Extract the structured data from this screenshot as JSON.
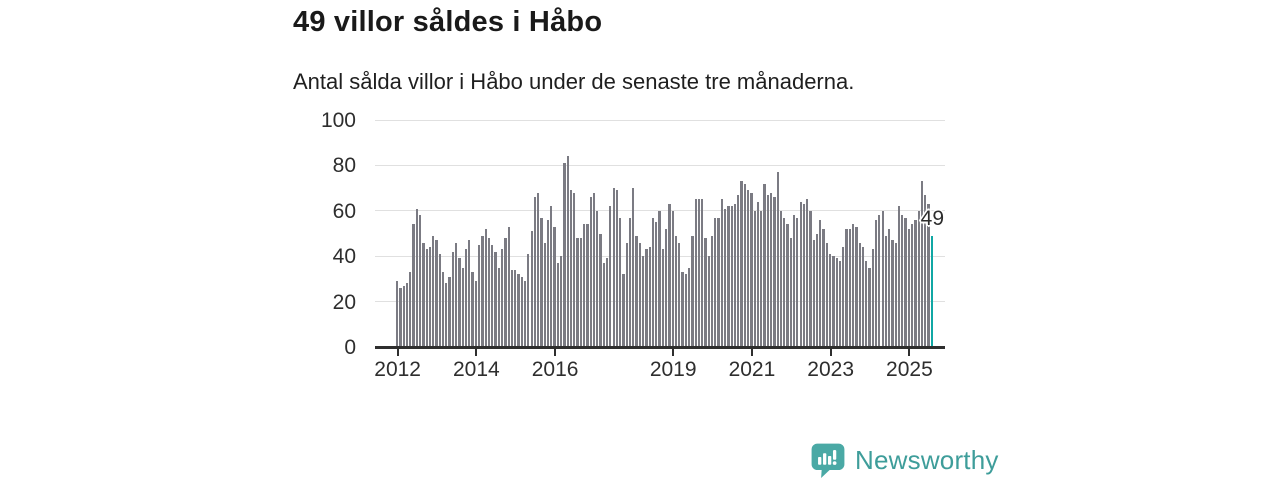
{
  "header": {
    "title": "49 villor såldes i Håbo",
    "subtitle": "Antal sålda villor i Håbo under de senaste tre månaderna."
  },
  "chart_data": {
    "type": "bar",
    "title": "49 villor såldes i Håbo",
    "subtitle": "Antal sålda villor i Håbo under de senaste tre månaderna.",
    "ylabel": "",
    "xlabel": "",
    "ylim": [
      0,
      100
    ],
    "yticks": [
      0,
      20,
      40,
      60,
      80,
      100
    ],
    "grid": true,
    "x_start": "2012-01",
    "x_end": "2025-08",
    "series_by_year": [
      {
        "year": 2012,
        "values": [
          29,
          26,
          27,
          28,
          33,
          54,
          61,
          58,
          46,
          43,
          44,
          49
        ]
      },
      {
        "year": 2013,
        "values": [
          47,
          41,
          33,
          28,
          31,
          42,
          46,
          39,
          35,
          43,
          47,
          33
        ]
      },
      {
        "year": 2014,
        "values": [
          29,
          45,
          49,
          52,
          48,
          45,
          42,
          35,
          43,
          48,
          53,
          34
        ]
      },
      {
        "year": 2015,
        "values": [
          34,
          32,
          31,
          29,
          41,
          51,
          66,
          68,
          57,
          46,
          56,
          62
        ]
      },
      {
        "year": 2016,
        "values": [
          53,
          37,
          40,
          81,
          84,
          69,
          68,
          48,
          48,
          54,
          54,
          66
        ]
      },
      {
        "year": 2017,
        "values": [
          68,
          60,
          50,
          37,
          39,
          62,
          70,
          69,
          57,
          32,
          46,
          57
        ]
      },
      {
        "year": 2018,
        "values": [
          70,
          49,
          46,
          40,
          43,
          44,
          57,
          55,
          60,
          43,
          52,
          63
        ]
      },
      {
        "year": 2019,
        "values": [
          60,
          49,
          46,
          33,
          32,
          35,
          49,
          65,
          65,
          65,
          48,
          40
        ]
      },
      {
        "year": 2020,
        "values": [
          49,
          57,
          57,
          65,
          61,
          62,
          62,
          63,
          67,
          73,
          72,
          69
        ]
      },
      {
        "year": 2021,
        "values": [
          68,
          60,
          64,
          60,
          72,
          67,
          68,
          66,
          77,
          60,
          57,
          54
        ]
      },
      {
        "year": 2022,
        "values": [
          48,
          58,
          57,
          64,
          63,
          65,
          60,
          47,
          50,
          56,
          52,
          46
        ]
      },
      {
        "year": 2023,
        "values": [
          41,
          40,
          39,
          38,
          44,
          52,
          52,
          54,
          53,
          46,
          44,
          38
        ]
      },
      {
        "year": 2024,
        "values": [
          35,
          43,
          56,
          58,
          60,
          49,
          52,
          47,
          46,
          62,
          58,
          57
        ]
      },
      {
        "year": 2025,
        "values": [
          52,
          54,
          56,
          60,
          73,
          67,
          63,
          49
        ]
      }
    ],
    "xticks": [
      {
        "label": "2012",
        "month_index": 0
      },
      {
        "label": "2014",
        "month_index": 24
      },
      {
        "label": "2016",
        "month_index": 48
      },
      {
        "label": "2019",
        "month_index": 84
      },
      {
        "label": "2021",
        "month_index": 108
      },
      {
        "label": "2023",
        "month_index": 132
      },
      {
        "label": "2025",
        "month_index": 156
      }
    ],
    "highlight": {
      "position": "last",
      "value": 49,
      "label": "49",
      "color": "#10a7a4"
    },
    "bar_color": "#7b7b83",
    "legend": null
  },
  "branding": {
    "name": "Newsworthy",
    "logo_icon": "newsworthy-bar-chart-bubble",
    "color": "#3e9d9a",
    "logo_fill": "#4aa9a5"
  }
}
